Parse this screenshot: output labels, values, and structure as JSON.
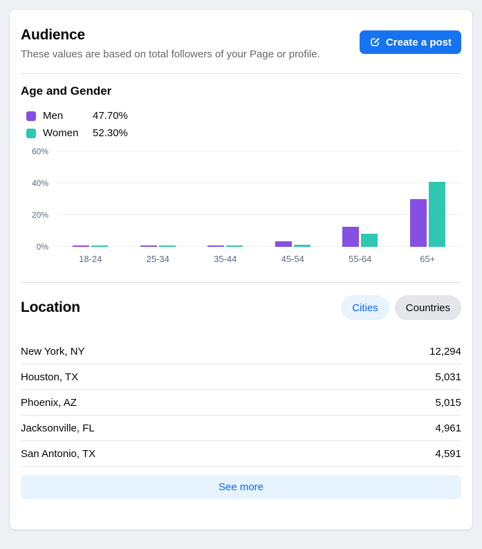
{
  "header": {
    "title": "Audience",
    "subtitle": "These values are based on total followers of your Page or profile.",
    "create_post_label": "Create a post",
    "accent_color": "#1673f2"
  },
  "age_gender": {
    "title": "Age and Gender",
    "legend": [
      {
        "label": "Men",
        "value": "47.70%",
        "color": "#864fe4"
      },
      {
        "label": "Women",
        "value": "52.30%",
        "color": "#2fc7b2"
      }
    ]
  },
  "chart_data": {
    "type": "bar",
    "title": "Age and Gender",
    "categories": [
      "18-24",
      "25-34",
      "35-44",
      "45-54",
      "55-64",
      "65+"
    ],
    "series": [
      {
        "name": "Men",
        "color": "#864fe4",
        "values": [
          0.5,
          0.6,
          0.6,
          3.5,
          12.5,
          30.0
        ]
      },
      {
        "name": "Women",
        "color": "#2fc7b2",
        "values": [
          0.5,
          0.5,
          0.5,
          1.4,
          8.4,
          41.0
        ]
      }
    ],
    "xlabel": "",
    "ylabel": "",
    "ylim": [
      0,
      60
    ],
    "yticks": [
      0,
      20,
      40,
      60
    ],
    "ytick_labels": [
      "0%",
      "20%",
      "40%",
      "60%"
    ],
    "grid": true,
    "legend_position": "top-left"
  },
  "location": {
    "title": "Location",
    "tabs": [
      {
        "label": "Cities",
        "active": true
      },
      {
        "label": "Countries",
        "active": false
      }
    ],
    "rows": [
      {
        "name": "New York, NY",
        "value": "12,294"
      },
      {
        "name": "Houston, TX",
        "value": "5,031"
      },
      {
        "name": "Phoenix, AZ",
        "value": "5,015"
      },
      {
        "name": "Jacksonville, FL",
        "value": "4,961"
      },
      {
        "name": "San Antonio, TX",
        "value": "4,591"
      }
    ],
    "see_more_label": "See more"
  }
}
